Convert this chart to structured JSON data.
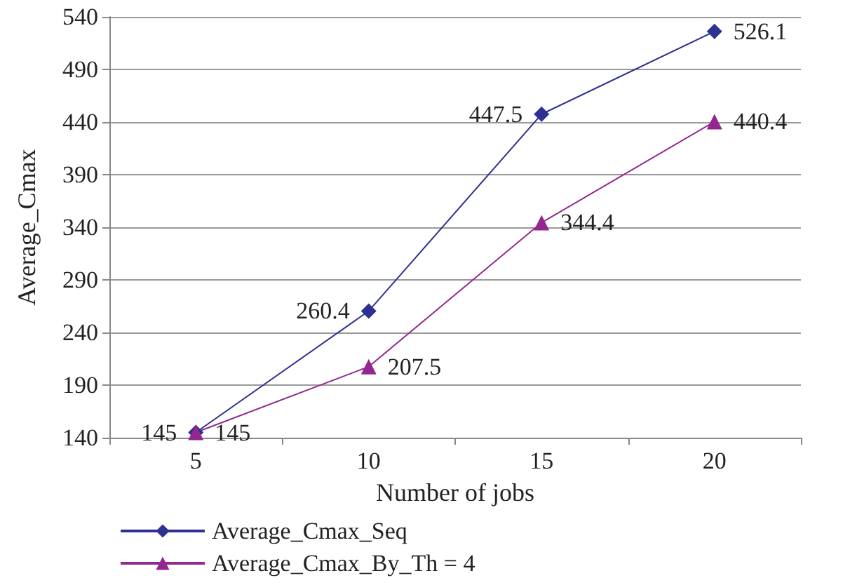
{
  "chart_data": {
    "type": "line",
    "xlabel": "Number of jobs",
    "ylabel": "Average_Cmax",
    "categories": [
      "5",
      "10",
      "15",
      "20"
    ],
    "series": [
      {
        "name": "Average_Cmax_Seq",
        "color": "#2e3192",
        "marker": "diamond",
        "values": [
          145,
          260.4,
          447.5,
          526.1
        ]
      },
      {
        "name": "Average_Cmax_By_Th = 4",
        "color": "#93278f",
        "marker": "triangle",
        "values": [
          145,
          207.5,
          344.4,
          440.4
        ]
      }
    ],
    "ylim": [
      140,
      540
    ],
    "yticks": [
      140,
      190,
      240,
      290,
      340,
      390,
      440,
      490,
      540
    ],
    "grid": "y",
    "legend": "bottom left",
    "data_labels": true
  }
}
